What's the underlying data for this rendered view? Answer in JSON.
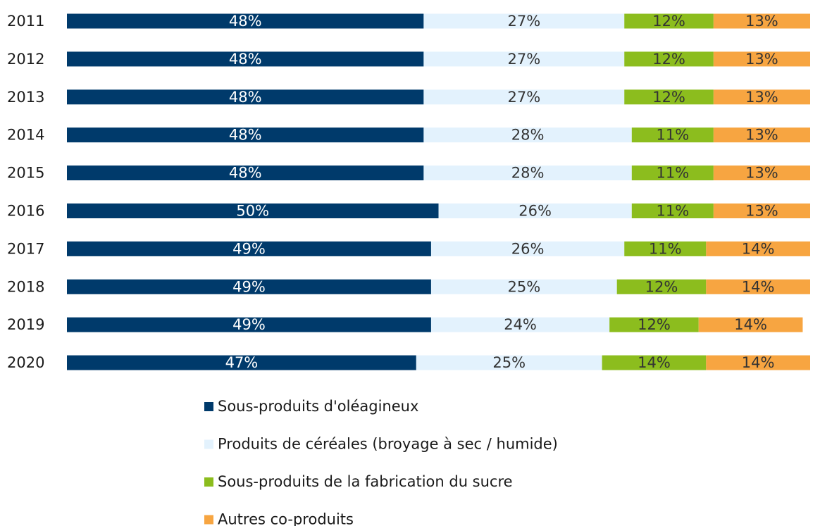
{
  "chart_data": {
    "type": "stacked-bar-horizontal",
    "categories": [
      "2011",
      "2012",
      "2013",
      "2014",
      "2015",
      "2016",
      "2017",
      "2018",
      "2019",
      "2020"
    ],
    "series": [
      {
        "name": "Sous-produits d'oléagineux",
        "color": "#003a6b",
        "values": [
          48,
          48,
          48,
          48,
          48,
          50,
          49,
          49,
          49,
          47
        ],
        "value_labels": [
          "48%",
          "48%",
          "48%",
          "48%",
          "48%",
          "50%",
          "49%",
          "49%",
          "49%",
          "47%"
        ]
      },
      {
        "name": "Produits de céréales (broyage à sec / humide)",
        "color": "#e3f2fd",
        "values": [
          27,
          27,
          27,
          28,
          28,
          26,
          26,
          25,
          24,
          25
        ],
        "value_labels": [
          "27%",
          "27%",
          "27%",
          "28%",
          "28%",
          "26%",
          "26%",
          "25%",
          "24%",
          "25%"
        ]
      },
      {
        "name": "Sous-produits de la fabrication du sucre",
        "color": "#8cbd1e",
        "values": [
          12,
          12,
          12,
          11,
          11,
          11,
          11,
          12,
          12,
          14
        ],
        "value_labels": [
          "12%",
          "12%",
          "12%",
          "11%",
          "11%",
          "11%",
          "11%",
          "12%",
          "12%",
          "14%"
        ]
      },
      {
        "name": "Autres co-produits",
        "color": "#f7a541",
        "values": [
          13,
          13,
          13,
          13,
          13,
          13,
          14,
          14,
          14,
          14
        ],
        "value_labels": [
          "13%",
          "13%",
          "13%",
          "13%",
          "13%",
          "13%",
          "14%",
          "14%",
          "14%",
          "14%"
        ]
      }
    ]
  }
}
